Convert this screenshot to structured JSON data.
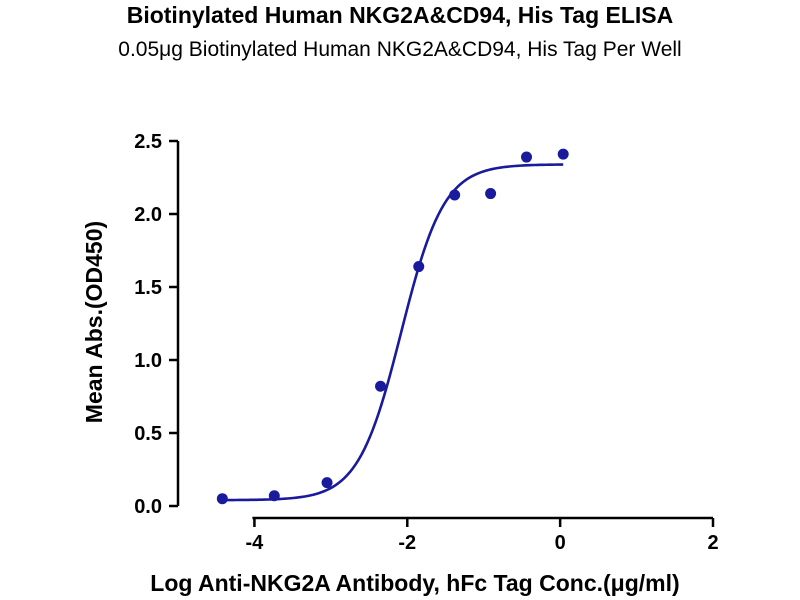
{
  "chart_data": {
    "type": "scatter",
    "title": "Biotinylated Human NKG2A&CD94, His Tag ELISA",
    "subtitle": "0.05μg Biotinylated Human NKG2A&CD94, His Tag Per Well",
    "xlabel": "Log Anti-NKG2A Antibody, hFc Tag Conc.(μg/ml)",
    "ylabel": "Mean Abs.(OD450)",
    "xlim": [
      -5,
      2
    ],
    "ylim": [
      0,
      2.5
    ],
    "x_ticks": [
      -4,
      -2,
      0,
      2
    ],
    "x_tick_labels": [
      "-4",
      "-2",
      "0",
      "2"
    ],
    "y_ticks": [
      0,
      0.5,
      1.0,
      1.5,
      2.0,
      2.5
    ],
    "y_tick_labels": [
      "0.0",
      "0.5",
      "1.0",
      "1.5",
      "2.0",
      "2.5"
    ],
    "series": [
      {
        "x": [
          -4.42,
          -3.74,
          -3.05,
          -2.35,
          -1.85,
          -1.38,
          -0.91,
          -0.44,
          0.04
        ],
        "y": [
          0.05,
          0.07,
          0.16,
          0.82,
          1.64,
          2.13,
          2.14,
          2.39,
          2.41
        ]
      }
    ],
    "fit_curve": {
      "bottom": 0.04,
      "top": 2.34,
      "log_ec50": -2.08,
      "hill_slope": 1.55
    },
    "grid": false,
    "color": "#1a1a9c"
  }
}
